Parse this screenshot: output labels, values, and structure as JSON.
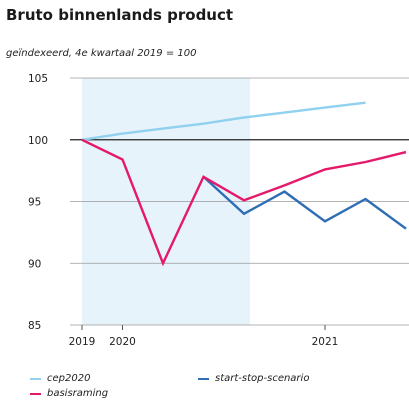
{
  "title": "Bruto binnenlands product",
  "subtitle": "geïndexeerd, 4e kwartaal 2019 = 100",
  "colors": {
    "cep2020": "#8fd1ee",
    "basisraming": "#e5196a",
    "start_stop": "#2f6db5",
    "shade": "#e6f3fb"
  },
  "chart_data": {
    "type": "line",
    "title": "Bruto binnenlands product",
    "subtitle": "geïndexeerd, 4e kwartaal 2019 = 100",
    "x": [
      "2019Q4",
      "2020Q1",
      "2020Q2",
      "2020Q3",
      "2020Q4",
      "2021Q1",
      "2021Q2",
      "2021Q3",
      "2021Q4",
      "2022Q1"
    ],
    "ylim": [
      85,
      105
    ],
    "yticks": [
      85,
      90,
      95,
      100,
      105
    ],
    "xtick_labels": [
      {
        "label": "2019",
        "at": "2019Q4"
      },
      {
        "label": "2020",
        "at": "2020Q1"
      },
      {
        "label": "2021",
        "at": "2021Q2"
      }
    ],
    "reference_line": 100,
    "shaded_until": "2020Q4",
    "series": [
      {
        "name": "cep2020",
        "values": [
          100,
          100.5,
          100.9,
          101.3,
          101.8,
          102.2,
          102.6,
          103.0,
          null,
          null
        ]
      },
      {
        "name": "basisraming",
        "values": [
          100,
          98.4,
          90.0,
          97.0,
          95.1,
          96.3,
          97.6,
          98.2,
          99.0,
          null
        ]
      },
      {
        "name": "start-stop-scenario",
        "values": [
          null,
          null,
          null,
          97.0,
          94.0,
          95.8,
          93.4,
          95.2,
          92.8,
          null
        ]
      }
    ],
    "legend": [
      "cep2020",
      "start-stop-scenario",
      "basisraming"
    ]
  }
}
